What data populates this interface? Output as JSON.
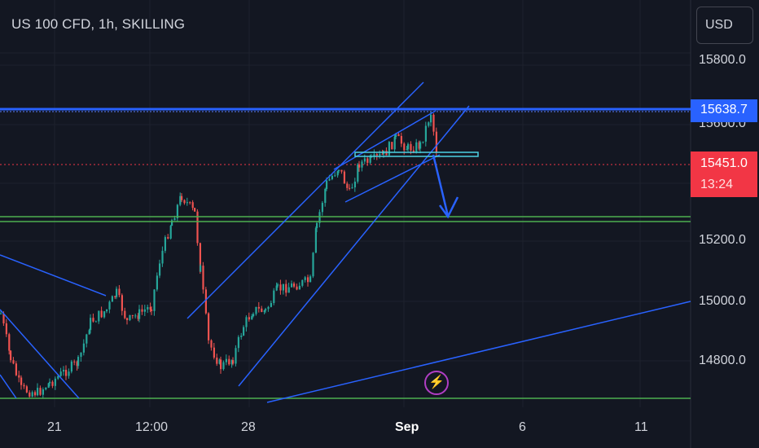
{
  "header": {
    "symbol": "US 100 CFD, 1h, SKILLING",
    "currency": "USD"
  },
  "price_axis": {
    "labels": [
      "15800.0",
      "15600.0",
      "15200.0",
      "15000.0",
      "14800.0"
    ],
    "horizontal_line_tag": "15638.7",
    "last_price_tag": "15451.0",
    "countdown": "13:24"
  },
  "time_axis": {
    "labels": [
      "21",
      "12:00",
      "28",
      "Sep",
      "6",
      "11"
    ]
  },
  "alert_icon": "lightning-icon",
  "colors": {
    "background": "#131722",
    "up_candle": "#26a69a",
    "down_candle": "#ef5350",
    "drawing_blue": "#2962ff",
    "support_green": "#4caf50",
    "price_tag_red": "#f23645",
    "alert_purple": "#b03ec4"
  }
}
